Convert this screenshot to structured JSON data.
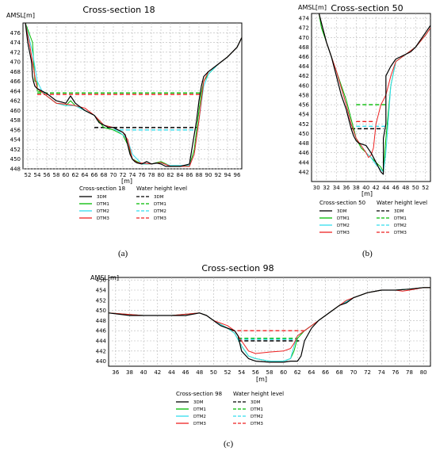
{
  "colors": {
    "3DM": "#000000",
    "DTM1": "#00bb00",
    "DTM2": "#33ddee",
    "DTM3": "#ee2222",
    "grid": "#b8b8b8"
  },
  "legend_line_style": {
    "solid": "solid",
    "dashed": "dashed"
  },
  "captions": {
    "a": "(a)",
    "b": "(b)",
    "c": "(c)"
  },
  "chart_data": [
    {
      "type": "line",
      "title": "Cross-section 18",
      "ylabel": "AMSL[m]",
      "xlabel": "[m]",
      "xlim": [
        51,
        97
      ],
      "ylim": [
        448,
        478
      ],
      "xticks": [
        52,
        54,
        56,
        58,
        60,
        62,
        64,
        66,
        68,
        70,
        72,
        74,
        76,
        78,
        80,
        82,
        84,
        86,
        88,
        90,
        92,
        94,
        96
      ],
      "yticks": [
        448,
        450,
        452,
        454,
        456,
        458,
        460,
        462,
        464,
        466,
        468,
        470,
        472,
        474,
        476
      ],
      "legend": {
        "placement": "below",
        "header_profile": "Cross-section 18",
        "header_water": "Water height level"
      },
      "series": [
        {
          "name": "3DM",
          "style": "solid",
          "x": [
            51.5,
            52,
            52.4,
            52.8,
            53,
            53.2,
            53.5,
            54,
            56,
            58,
            60,
            61,
            62,
            64,
            66,
            67,
            68,
            69,
            70,
            71,
            72,
            72.5,
            73,
            73.5,
            74,
            74.5,
            75,
            76,
            77,
            78,
            79,
            80,
            81,
            82,
            84,
            86,
            86.5,
            87,
            87.5,
            88,
            88.5,
            89,
            90,
            92,
            94,
            96,
            97
          ],
          "y": [
            478,
            474,
            472,
            470,
            467,
            466,
            465,
            464.5,
            463.5,
            462,
            461.5,
            463,
            461.5,
            460,
            459,
            457.5,
            457,
            456.5,
            456.5,
            456,
            455.5,
            455,
            453,
            451,
            450,
            449.5,
            449.2,
            449,
            449.5,
            449,
            449.2,
            449,
            448.5,
            448.5,
            448.5,
            449,
            452,
            455,
            458,
            462,
            465,
            467,
            468,
            469.5,
            471,
            473,
            475
          ]
        },
        {
          "name": "DTM1",
          "style": "solid",
          "x": [
            51.5,
            53,
            53.5,
            54,
            54,
            55,
            56,
            58,
            60,
            61,
            62,
            64,
            66,
            68,
            70,
            72,
            73,
            74,
            75,
            76,
            78,
            80,
            82,
            84,
            86,
            87,
            87.5,
            88,
            88.5,
            89,
            90,
            92,
            94,
            96,
            97
          ],
          "y": [
            478,
            474,
            466,
            466,
            464,
            463.8,
            463,
            461.5,
            461,
            462,
            461,
            460,
            459,
            456.5,
            456,
            455,
            453,
            450,
            449.5,
            449,
            449,
            449.5,
            448.6,
            448.6,
            448.6,
            452,
            456,
            460,
            463.5,
            466,
            467.5,
            469.5,
            471,
            473,
            475
          ]
        },
        {
          "name": "DTM2",
          "style": "solid",
          "x": [
            51.5,
            53,
            54,
            55,
            56,
            58,
            60,
            62,
            64,
            66,
            68,
            70,
            72,
            73,
            74,
            76,
            78,
            80,
            82,
            84,
            86,
            87,
            88,
            89,
            90,
            92,
            94,
            96,
            97
          ],
          "y": [
            478,
            472,
            466,
            464,
            463,
            461.5,
            461,
            461,
            460,
            459,
            457,
            456.5,
            455,
            454,
            451,
            449,
            449,
            449.2,
            448.7,
            448.7,
            448.7,
            451,
            458,
            465,
            467.5,
            469.5,
            471,
            473,
            475
          ]
        },
        {
          "name": "DTM3",
          "style": "solid",
          "x": [
            51.5,
            52.5,
            53.5,
            54,
            56,
            58,
            60,
            62,
            64,
            66,
            68,
            70,
            72,
            73,
            74,
            75,
            76,
            78,
            80,
            82,
            84,
            86,
            87,
            88,
            88.5,
            89,
            90,
            92,
            94,
            96,
            97
          ],
          "y": [
            478,
            473,
            467,
            464.5,
            463,
            461.5,
            461.3,
            461,
            460.5,
            459,
            457,
            456.5,
            455.5,
            454,
            450,
            449.3,
            449.2,
            449,
            449.3,
            448.5,
            448.5,
            448.5,
            451,
            458,
            462,
            466,
            468,
            469.5,
            471,
            473,
            475
          ]
        },
        {
          "name": "3DM",
          "style": "dashed",
          "level": 456.5,
          "x_from": 66,
          "x_to": 87.5
        },
        {
          "name": "DTM1",
          "style": "dashed",
          "level": 463.6,
          "x_from": 54,
          "x_to": 88.5
        },
        {
          "name": "DTM2",
          "style": "dashed",
          "level": 456,
          "x_from": 70,
          "x_to": 87.5
        },
        {
          "name": "DTM3",
          "style": "dashed",
          "level": 463.3,
          "x_from": 54,
          "x_to": 88.5
        }
      ]
    },
    {
      "type": "line",
      "title": "Cross-section 50",
      "ylabel": "AMSL[m]",
      "xlabel": "[m]",
      "xlim": [
        29,
        53
      ],
      "ylim": [
        440,
        475
      ],
      "xticks": [
        30,
        32,
        34,
        36,
        38,
        40,
        42,
        44,
        46,
        48,
        50,
        52
      ],
      "yticks": [
        442,
        444,
        446,
        448,
        450,
        452,
        454,
        456,
        458,
        460,
        462,
        464,
        466,
        468,
        470,
        472,
        474
      ],
      "legend": {
        "placement": "below",
        "header_profile": "Cross-section 50",
        "header_water": "Water height level"
      },
      "series": [
        {
          "name": "3DM",
          "style": "solid",
          "x": [
            30.5,
            31,
            32,
            33,
            34,
            35,
            36,
            36.5,
            37,
            37.5,
            38,
            38.5,
            40,
            41,
            42,
            43,
            43.5,
            43.5,
            44,
            44,
            45,
            46,
            47,
            48,
            49,
            50,
            51,
            52,
            53
          ],
          "y": [
            475,
            473,
            469,
            466,
            462,
            458,
            455,
            453,
            451,
            449.5,
            448.5,
            448,
            447.5,
            446,
            444,
            442,
            441.5,
            449,
            452,
            462,
            464,
            465.5,
            466,
            466.5,
            467,
            468,
            469.5,
            471,
            472.5
          ]
        },
        {
          "name": "DTM1",
          "style": "solid",
          "x": [
            30.5,
            31,
            32,
            34,
            36,
            37,
            38,
            39,
            40,
            41,
            42,
            43,
            43.5,
            44,
            45,
            46,
            48,
            50,
            52,
            53
          ],
          "y": [
            475,
            472,
            469,
            463,
            457,
            453,
            449,
            447,
            446,
            445,
            444,
            443,
            442,
            449,
            460,
            465,
            466.5,
            468,
            470.5,
            472
          ]
        },
        {
          "name": "DTM2",
          "style": "solid",
          "x": [
            30.5,
            32,
            34,
            36,
            37,
            38,
            39,
            40,
            41,
            42,
            43,
            43.5,
            44,
            45,
            46,
            48,
            50,
            52,
            53
          ],
          "y": [
            475,
            469,
            463,
            456,
            452,
            449,
            447.5,
            446,
            445,
            443.5,
            442.5,
            442,
            446,
            460,
            465,
            466.5,
            468,
            470.5,
            472
          ]
        },
        {
          "name": "DTM3",
          "style": "solid",
          "x": [
            30.5,
            32,
            34,
            36,
            37,
            38,
            39,
            40,
            40.5,
            41,
            41.5,
            42,
            43,
            44,
            45,
            46,
            48,
            50,
            52,
            53
          ],
          "y": [
            475,
            469,
            463,
            456,
            452,
            449,
            447.5,
            446,
            445,
            445.5,
            447,
            452,
            456,
            458,
            462,
            465,
            466.5,
            468,
            470.5,
            472
          ]
        },
        {
          "name": "3DM",
          "style": "dashed",
          "level": 451,
          "x_from": 37,
          "x_to": 43.5
        },
        {
          "name": "DTM1",
          "style": "dashed",
          "level": 456,
          "x_from": 38,
          "x_to": 44
        },
        {
          "name": "DTM2",
          "style": "dashed",
          "level": 451.5,
          "x_from": 38,
          "x_to": 44
        },
        {
          "name": "DTM3",
          "style": "dashed",
          "level": 452.5,
          "x_from": 38,
          "x_to": 41.5
        }
      ]
    },
    {
      "type": "line",
      "title": "Cross-section 98",
      "ylabel": "AMSL[m]",
      "xlabel": "[m]",
      "xlim": [
        35,
        81
      ],
      "ylim": [
        439,
        456.5
      ],
      "xticks": [
        36,
        38,
        40,
        42,
        44,
        46,
        48,
        50,
        52,
        54,
        56,
        58,
        60,
        62,
        64,
        66,
        68,
        70,
        72,
        74,
        76,
        78,
        80
      ],
      "yticks": [
        440,
        442,
        444,
        446,
        448,
        450,
        452,
        454,
        456
      ],
      "legend": {
        "placement": "below",
        "header_profile": "Cross-section 98",
        "header_water": "Water height level"
      },
      "series": [
        {
          "name": "3DM",
          "style": "solid",
          "x": [
            35,
            38,
            40,
            42,
            44,
            46,
            48,
            49,
            50,
            51,
            52,
            53,
            53.5,
            54,
            55,
            56,
            58,
            60,
            61,
            62,
            62.5,
            63,
            64,
            65,
            66,
            67,
            68,
            69,
            70,
            71,
            72,
            74,
            76,
            78,
            80,
            81
          ],
          "y": [
            449.5,
            449,
            449,
            449,
            449,
            449,
            449.5,
            449,
            448,
            447,
            446.5,
            446,
            445,
            442,
            440.5,
            440,
            439.8,
            439.8,
            440,
            440,
            441,
            444,
            446.5,
            448,
            449,
            450,
            451,
            451.5,
            452.5,
            453,
            453.5,
            454,
            454,
            454.2,
            454.5,
            454.5
          ]
        },
        {
          "name": "DTM1",
          "style": "solid",
          "x": [
            35,
            40,
            44,
            48,
            49,
            50,
            52,
            53,
            54,
            55,
            56,
            58,
            60,
            61,
            61.5,
            62,
            63,
            64,
            66,
            68,
            70,
            72,
            74,
            76,
            78,
            80,
            81
          ],
          "y": [
            449.5,
            449,
            449,
            449.5,
            449,
            448,
            446.5,
            445.5,
            443,
            441,
            440.5,
            440,
            440,
            440.5,
            442,
            444.5,
            446,
            447,
            449,
            451,
            452.5,
            453.5,
            454,
            454,
            454.2,
            454.5,
            454.5
          ]
        },
        {
          "name": "DTM2",
          "style": "solid",
          "x": [
            35,
            40,
            44,
            48,
            49,
            50,
            52,
            53,
            54,
            55,
            56,
            58,
            60,
            61,
            61.5,
            62,
            63,
            64,
            66,
            68,
            70,
            72,
            74,
            76,
            78,
            80,
            81
          ],
          "y": [
            449.5,
            449,
            449,
            449.5,
            449,
            448,
            446.5,
            445.5,
            443,
            441,
            440.5,
            440,
            440,
            440.5,
            443,
            445,
            446,
            447,
            449,
            451,
            452.5,
            453.5,
            454,
            454,
            454.2,
            454.5,
            454.5
          ]
        },
        {
          "name": "DTM3",
          "style": "solid",
          "x": [
            35,
            40,
            44,
            48,
            49,
            50,
            51,
            52,
            53,
            54,
            55,
            56,
            58,
            60,
            61,
            61.5,
            62,
            63,
            64,
            66,
            68,
            69,
            70,
            72,
            74,
            76,
            77,
            78,
            80,
            81
          ],
          "y": [
            449.5,
            449,
            449,
            449.5,
            449,
            448,
            447.5,
            447,
            446,
            444,
            442,
            441.5,
            441.8,
            442,
            442.5,
            443.5,
            445,
            446,
            447,
            449,
            451,
            452,
            452.5,
            453.5,
            454,
            454,
            453.8,
            454,
            454.5,
            454.5
          ]
        },
        {
          "name": "3DM",
          "style": "dashed",
          "level": 444,
          "x_from": 53.5,
          "x_to": 62.5
        },
        {
          "name": "DTM1",
          "style": "dashed",
          "level": 444.5,
          "x_from": 53.5,
          "x_to": 62
        },
        {
          "name": "DTM2",
          "style": "dashed",
          "level": 444.3,
          "x_from": 53.5,
          "x_to": 62
        },
        {
          "name": "DTM3",
          "style": "dashed",
          "level": 446,
          "x_from": 52.5,
          "x_to": 63
        }
      ]
    }
  ]
}
